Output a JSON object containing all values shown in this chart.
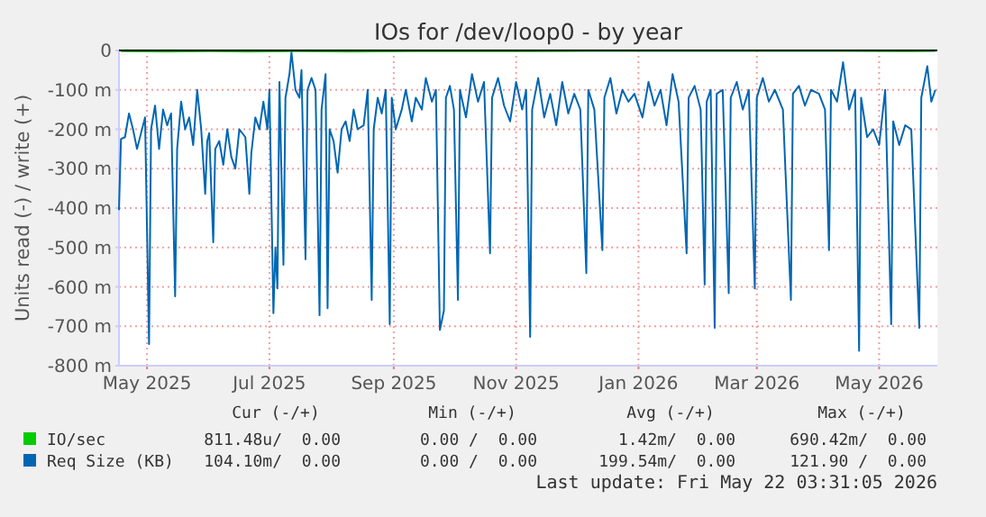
{
  "chart_data": {
    "type": "line",
    "title": "IOs for /dev/loop0 - by year",
    "ylabel": "Units read (-) / write (+)",
    "xlim": [
      "2025-04-17",
      "2026-05-30"
    ],
    "xticks": [
      {
        "value": "2025-05-01",
        "label": "May 2025"
      },
      {
        "value": "2025-07-01",
        "label": "Jul 2025"
      },
      {
        "value": "2025-09-01",
        "label": "Sep 2025"
      },
      {
        "value": "2025-11-01",
        "label": "Nov 2025"
      },
      {
        "value": "2026-01-01",
        "label": "Jan 2026"
      },
      {
        "value": "2026-03-01",
        "label": "Mar 2026"
      },
      {
        "value": "2026-05-01",
        "label": "May 2026"
      }
    ],
    "ylim": [
      -800,
      0
    ],
    "yticks": [
      0,
      {
        "value": -100,
        "label": "-100 m"
      },
      {
        "value": -200,
        "label": "-200 m"
      },
      {
        "value": -300,
        "label": "-300 m"
      },
      {
        "value": -400,
        "label": "-400 m"
      },
      {
        "value": -500,
        "label": "-500 m"
      },
      {
        "value": -600,
        "label": "-600 m"
      },
      {
        "value": -700,
        "label": "-700 m"
      },
      {
        "value": -800,
        "label": "-800 m"
      }
    ],
    "grid": true,
    "legend": "bottom",
    "line_style": "solid",
    "marker": "none",
    "ref_lines": [
      {
        "axis": "y",
        "value": 0,
        "color": "#000000"
      }
    ],
    "series": [
      {
        "name": "IO/sec",
        "color": "#00cc00",
        "x": [
          "2025-04-18",
          "2025-05-10",
          "2025-06-01",
          "2025-06-20",
          "2025-07-15",
          "2025-08-10",
          "2025-09-10",
          "2025-10-10",
          "2025-11-10",
          "2025-12-10",
          "2026-01-10",
          "2026-02-10",
          "2026-03-10",
          "2026-04-10",
          "2026-05-10",
          "2026-05-29"
        ],
        "values": [
          -2,
          -3,
          -2,
          -3,
          -2,
          -3,
          -2,
          -2,
          -2,
          -1,
          -1,
          -1,
          -1,
          -1,
          -2,
          -1
        ]
      },
      {
        "name": "Req Size (KB)",
        "color": "#0066b3",
        "x": [
          "2025-04-17",
          "2025-04-18",
          "2025-04-20",
          "2025-04-22",
          "2025-04-24",
          "2025-04-26",
          "2025-04-28",
          "2025-04-30",
          "2025-05-02",
          "2025-05-03",
          "2025-05-05",
          "2025-05-07",
          "2025-05-09",
          "2025-05-11",
          "2025-05-13",
          "2025-05-15",
          "2025-05-16",
          "2025-05-18",
          "2025-05-20",
          "2025-05-22",
          "2025-05-24",
          "2025-05-26",
          "2025-05-28",
          "2025-05-30",
          "2025-05-31",
          "2025-06-01",
          "2025-06-03",
          "2025-06-04",
          "2025-06-06",
          "2025-06-08",
          "2025-06-10",
          "2025-06-12",
          "2025-06-14",
          "2025-06-16",
          "2025-06-19",
          "2025-06-21",
          "2025-06-22",
          "2025-06-24",
          "2025-06-26",
          "2025-06-28",
          "2025-06-30",
          "2025-07-01",
          "2025-07-03",
          "2025-07-04",
          "2025-07-05",
          "2025-07-06",
          "2025-07-08",
          "2025-07-09",
          "2025-07-11",
          "2025-07-12",
          "2025-07-14",
          "2025-07-16",
          "2025-07-17",
          "2025-07-19",
          "2025-07-20",
          "2025-07-22",
          "2025-07-24",
          "2025-07-26",
          "2025-07-27",
          "2025-07-29",
          "2025-07-30",
          "2025-07-31",
          "2025-08-02",
          "2025-08-04",
          "2025-08-06",
          "2025-08-08",
          "2025-08-10",
          "2025-08-12",
          "2025-08-14",
          "2025-08-17",
          "2025-08-19",
          "2025-08-21",
          "2025-08-22",
          "2025-08-24",
          "2025-08-26",
          "2025-08-28",
          "2025-08-30",
          "2025-08-31",
          "2025-09-02",
          "2025-09-05",
          "2025-09-07",
          "2025-09-10",
          "2025-09-12",
          "2025-09-15",
          "2025-09-17",
          "2025-09-20",
          "2025-09-22",
          "2025-09-24",
          "2025-09-26",
          "2025-09-27",
          "2025-09-29",
          "2025-10-01",
          "2025-10-03",
          "2025-10-04",
          "2025-10-07",
          "2025-10-10",
          "2025-10-13",
          "2025-10-16",
          "2025-10-19",
          "2025-10-20",
          "2025-10-23",
          "2025-10-26",
          "2025-10-29",
          "2025-11-01",
          "2025-11-04",
          "2025-11-06",
          "2025-11-08",
          "2025-11-09",
          "2025-11-12",
          "2025-11-15",
          "2025-11-18",
          "2025-11-21",
          "2025-11-24",
          "2025-11-27",
          "2025-11-30",
          "2025-12-03",
          "2025-12-06",
          "2025-12-07",
          "2025-12-10",
          "2025-12-14",
          "2025-12-15",
          "2025-12-18",
          "2025-12-21",
          "2025-12-24",
          "2025-12-27",
          "2025-12-30",
          "2026-01-03",
          "2026-01-06",
          "2026-01-09",
          "2026-01-12",
          "2026-01-15",
          "2026-01-18",
          "2026-01-21",
          "2026-01-25",
          "2026-01-26",
          "2026-01-29",
          "2026-02-01",
          "2026-02-03",
          "2026-02-04",
          "2026-02-06",
          "2026-02-08",
          "2026-02-09",
          "2026-02-12",
          "2026-02-15",
          "2026-02-16",
          "2026-02-19",
          "2026-02-22",
          "2026-02-25",
          "2026-02-28",
          "2026-03-01",
          "2026-03-04",
          "2026-03-07",
          "2026-03-10",
          "2026-03-14",
          "2026-03-18",
          "2026-03-19",
          "2026-03-22",
          "2026-03-25",
          "2026-03-28",
          "2026-04-01",
          "2026-04-04",
          "2026-04-06",
          "2026-04-07",
          "2026-04-10",
          "2026-04-13",
          "2026-04-16",
          "2026-04-19",
          "2026-04-21",
          "2026-04-22",
          "2026-04-25",
          "2026-04-28",
          "2026-05-01",
          "2026-05-04",
          "2026-05-07",
          "2026-05-08",
          "2026-05-11",
          "2026-05-14",
          "2026-05-17",
          "2026-05-21",
          "2026-05-22",
          "2026-05-25",
          "2026-05-27",
          "2026-05-29"
        ],
        "values": [
          -405,
          -225,
          -220,
          -160,
          -200,
          -250,
          -210,
          -170,
          -745,
          -200,
          -140,
          -250,
          -150,
          -190,
          -160,
          -624,
          -250,
          -130,
          -200,
          -170,
          -240,
          -100,
          -200,
          -364,
          -230,
          -210,
          -487,
          -250,
          -230,
          -290,
          -200,
          -270,
          -300,
          -200,
          -220,
          -364,
          -260,
          -170,
          -200,
          -130,
          -200,
          -100,
          -667,
          -500,
          -604,
          -80,
          -544,
          -120,
          -60,
          -5,
          -100,
          -120,
          -50,
          -530,
          -100,
          -70,
          -100,
          -672,
          -150,
          -60,
          -654,
          -200,
          -230,
          -310,
          -200,
          -180,
          -230,
          -150,
          -200,
          -190,
          -100,
          -633,
          -200,
          -120,
          -160,
          -100,
          -695,
          -120,
          -200,
          -150,
          -100,
          -180,
          -120,
          -150,
          -70,
          -130,
          -100,
          -709,
          -660,
          -120,
          -90,
          -150,
          -633,
          -100,
          -170,
          -60,
          -130,
          -80,
          -515,
          -120,
          -70,
          -140,
          -180,
          -80,
          -150,
          -100,
          -727,
          -150,
          -70,
          -170,
          -110,
          -190,
          -80,
          -160,
          -110,
          -150,
          -565,
          -100,
          -150,
          -507,
          -120,
          -70,
          -160,
          -100,
          -130,
          -110,
          -170,
          -80,
          -140,
          -100,
          -190,
          -60,
          -130,
          -515,
          -120,
          -90,
          -150,
          -594,
          -130,
          -100,
          -704,
          -110,
          -100,
          -616,
          -120,
          -80,
          -150,
          -100,
          -604,
          -120,
          -70,
          -130,
          -100,
          -150,
          -633,
          -110,
          -90,
          -140,
          -100,
          -110,
          -150,
          -507,
          -100,
          -130,
          -30,
          -150,
          -100,
          -762,
          -120,
          -220,
          -200,
          -240,
          -100,
          -695,
          -180,
          -240,
          -190,
          -200,
          -704,
          -120,
          -40,
          -130,
          -100
        ]
      }
    ],
    "annotations": [
      "Cur (-/+)",
      "Min (-/+)",
      "Avg (-/+)",
      "Max (-/+)",
      "811.48u/  0.00",
      "0.00 /  0.00",
      "1.42m/  0.00",
      "690.42m/  0.00",
      "104.10m/  0.00",
      "0.00 /  0.00",
      "199.54m/  0.00",
      "121.90 /  0.00",
      "Last update: Fri May 22 03:31:05 2026"
    ]
  }
}
